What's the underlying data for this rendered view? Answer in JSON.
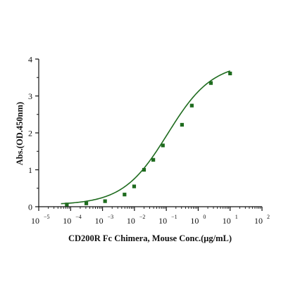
{
  "chart_data": {
    "type": "scatter",
    "title": "",
    "xlabel": "CD200R Fc Chimera, Mouse Conc.(μg/mL)",
    "ylabel": "Abs.(OD.450nm)",
    "xscale": "log",
    "xlim": [
      1e-05,
      100
    ],
    "ylim": [
      0,
      4
    ],
    "x_ticks": [
      {
        "base": "10",
        "exp": "-5"
      },
      {
        "base": "10",
        "exp": "-4"
      },
      {
        "base": "10",
        "exp": "-3"
      },
      {
        "base": "10",
        "exp": "-2"
      },
      {
        "base": "10",
        "exp": "-1"
      },
      {
        "base": "10",
        "exp": "0"
      },
      {
        "base": "10",
        "exp": "1"
      },
      {
        "base": "10",
        "exp": "2"
      }
    ],
    "y_ticks": [
      "0",
      "1",
      "2",
      "3",
      "4"
    ],
    "grid": false,
    "legend": "none",
    "series": [
      {
        "color": "#1e6b1e",
        "marker": "square",
        "points": [
          {
            "x": 7.6e-05,
            "y": 0.06
          },
          {
            "x": 0.00031,
            "y": 0.09
          },
          {
            "x": 0.0012,
            "y": 0.15
          },
          {
            "x": 0.0049,
            "y": 0.33
          },
          {
            "x": 0.0098,
            "y": 0.55
          },
          {
            "x": 0.02,
            "y": 1.0
          },
          {
            "x": 0.039,
            "y": 1.27
          },
          {
            "x": 0.078,
            "y": 1.66
          },
          {
            "x": 0.31,
            "y": 2.22
          },
          {
            "x": 0.63,
            "y": 2.74
          },
          {
            "x": 2.5,
            "y": 3.35
          },
          {
            "x": 10,
            "y": 3.61
          }
        ]
      }
    ],
    "fit_curve": {
      "model": "4PL",
      "color": "#1e6b1e",
      "bottom": 0.05,
      "top": 3.9,
      "ec50": 0.11,
      "hill": 0.62,
      "x_range": [
        5e-05,
        10
      ]
    }
  }
}
